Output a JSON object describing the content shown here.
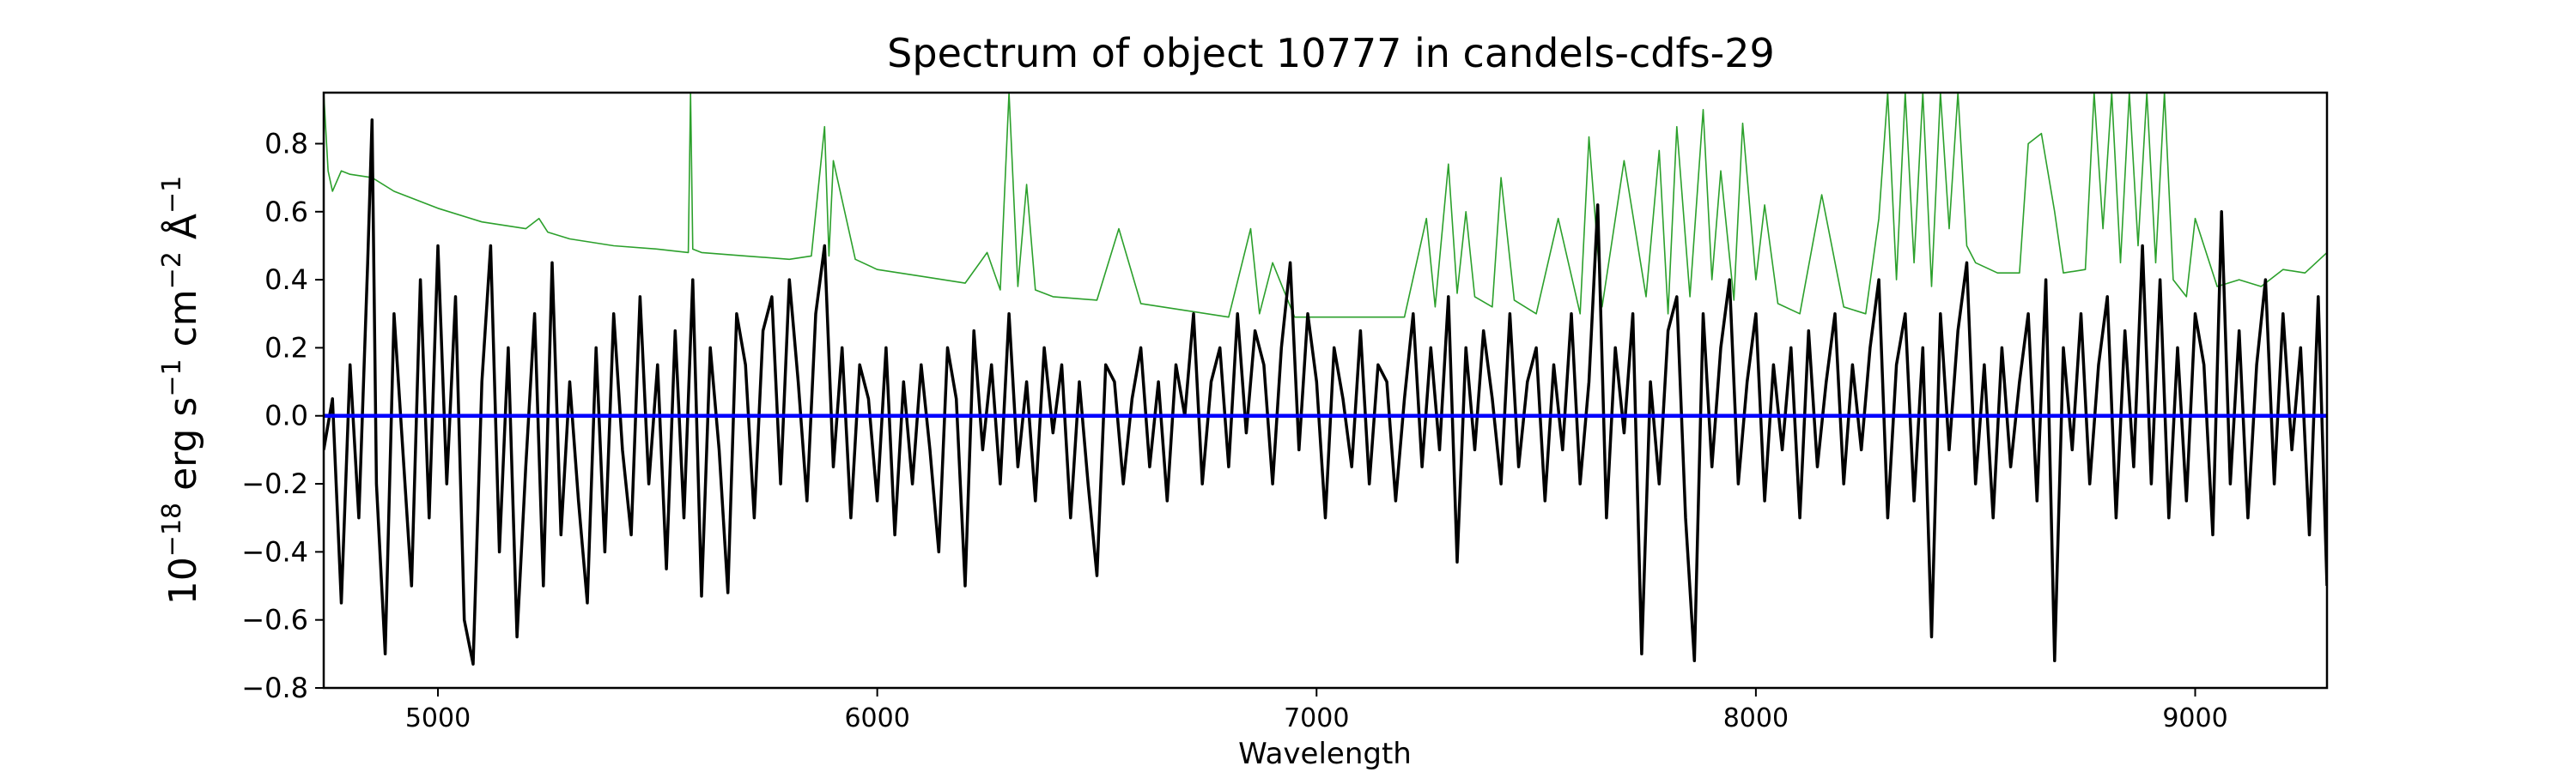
{
  "chart_data": {
    "type": "line",
    "title": "Spectrum of object 10777 in candels-cdfs-29",
    "xlabel": "Wavelength",
    "ylabel_parts": {
      "base": "10",
      "exp1": "−18",
      "erg": " erg s",
      "exp2": "−1",
      "cm": " cm",
      "exp3": "−2",
      "ang": " Å",
      "exp4": "−1"
    },
    "xlim": [
      4740,
      9300
    ],
    "ylim": [
      -0.8,
      0.95
    ],
    "x_ticks": [
      5000,
      6000,
      7000,
      8000,
      9000
    ],
    "x_tick_labels": [
      "5000",
      "6000",
      "7000",
      "8000",
      "9000"
    ],
    "y_ticks": [
      -0.8,
      -0.6,
      -0.4,
      -0.2,
      0.0,
      0.2,
      0.4,
      0.6,
      0.8
    ],
    "y_tick_labels": [
      "−0.8",
      "−0.6",
      "−0.4",
      "−0.2",
      "0.0",
      "0.2",
      "0.4",
      "0.6",
      "0.8"
    ],
    "grid": false,
    "legend": "none",
    "colors": {
      "flux": "#000000",
      "error": "#2ca02c",
      "zero": "#0000ff"
    },
    "series": [
      {
        "role": "zero-line",
        "x": [
          4740,
          9300
        ],
        "y": [
          0.0,
          0.0
        ]
      },
      {
        "role": "error-spectrum",
        "x": [
          4740,
          4750,
          4760,
          4780,
          4800,
          4850,
          4900,
          5000,
          5100,
          5200,
          5230,
          5250,
          5300,
          5400,
          5500,
          5570,
          5575,
          5580,
          5600,
          5700,
          5800,
          5850,
          5880,
          5890,
          5900,
          5950,
          6000,
          6100,
          6200,
          6250,
          6280,
          6300,
          6320,
          6340,
          6360,
          6400,
          6500,
          6550,
          6600,
          6700,
          6800,
          6850,
          6870,
          6900,
          6950,
          7000,
          7100,
          7200,
          7250,
          7270,
          7300,
          7320,
          7340,
          7360,
          7400,
          7420,
          7450,
          7500,
          7550,
          7600,
          7620,
          7650,
          7700,
          7750,
          7780,
          7800,
          7820,
          7850,
          7880,
          7900,
          7920,
          7950,
          7970,
          8000,
          8020,
          8050,
          8100,
          8150,
          8200,
          8250,
          8280,
          8300,
          8320,
          8340,
          8360,
          8380,
          8400,
          8420,
          8440,
          8460,
          8480,
          8500,
          8550,
          8600,
          8620,
          8650,
          8680,
          8700,
          8750,
          8770,
          8790,
          8810,
          8830,
          8850,
          8870,
          8890,
          8910,
          8930,
          8950,
          8980,
          9000,
          9050,
          9100,
          9150,
          9200,
          9250,
          9300
        ],
        "y": [
          0.95,
          0.72,
          0.66,
          0.72,
          0.71,
          0.7,
          0.66,
          0.61,
          0.57,
          0.55,
          0.58,
          0.54,
          0.52,
          0.5,
          0.49,
          0.48,
          0.95,
          0.49,
          0.48,
          0.47,
          0.46,
          0.47,
          0.85,
          0.47,
          0.75,
          0.46,
          0.43,
          0.41,
          0.39,
          0.48,
          0.37,
          0.95,
          0.38,
          0.68,
          0.37,
          0.35,
          0.34,
          0.55,
          0.33,
          0.31,
          0.29,
          0.55,
          0.3,
          0.45,
          0.29,
          0.29,
          0.29,
          0.29,
          0.58,
          0.32,
          0.74,
          0.36,
          0.6,
          0.35,
          0.32,
          0.7,
          0.34,
          0.3,
          0.58,
          0.3,
          0.82,
          0.32,
          0.75,
          0.35,
          0.78,
          0.3,
          0.85,
          0.35,
          0.9,
          0.4,
          0.72,
          0.34,
          0.86,
          0.4,
          0.62,
          0.33,
          0.3,
          0.65,
          0.32,
          0.3,
          0.58,
          0.95,
          0.4,
          0.95,
          0.45,
          0.95,
          0.38,
          0.95,
          0.55,
          0.95,
          0.5,
          0.45,
          0.42,
          0.42,
          0.8,
          0.83,
          0.6,
          0.42,
          0.43,
          0.95,
          0.55,
          0.95,
          0.45,
          0.95,
          0.5,
          0.95,
          0.45,
          0.95,
          0.4,
          0.35,
          0.58,
          0.38,
          0.4,
          0.38,
          0.43,
          0.42,
          0.48
        ]
      },
      {
        "role": "flux-spectrum",
        "x": [
          4740,
          4760,
          4780,
          4800,
          4820,
          4840,
          4850,
          4860,
          4880,
          4900,
          4920,
          4940,
          4960,
          4980,
          5000,
          5020,
          5040,
          5060,
          5080,
          5100,
          5120,
          5140,
          5160,
          5180,
          5200,
          5220,
          5240,
          5260,
          5280,
          5300,
          5320,
          5340,
          5360,
          5380,
          5400,
          5420,
          5440,
          5460,
          5480,
          5500,
          5520,
          5540,
          5560,
          5580,
          5600,
          5620,
          5640,
          5660,
          5680,
          5700,
          5720,
          5740,
          5760,
          5780,
          5800,
          5820,
          5840,
          5860,
          5880,
          5900,
          5920,
          5940,
          5960,
          5980,
          6000,
          6020,
          6040,
          6060,
          6080,
          6100,
          6120,
          6140,
          6160,
          6180,
          6200,
          6220,
          6240,
          6260,
          6280,
          6300,
          6320,
          6340,
          6360,
          6380,
          6400,
          6420,
          6440,
          6460,
          6480,
          6500,
          6520,
          6540,
          6560,
          6580,
          6600,
          6620,
          6640,
          6660,
          6680,
          6700,
          6720,
          6740,
          6760,
          6780,
          6800,
          6820,
          6840,
          6860,
          6880,
          6900,
          6920,
          6940,
          6960,
          6980,
          7000,
          7020,
          7040,
          7060,
          7080,
          7100,
          7120,
          7140,
          7160,
          7180,
          7200,
          7220,
          7240,
          7260,
          7280,
          7300,
          7320,
          7340,
          7360,
          7380,
          7400,
          7420,
          7440,
          7460,
          7480,
          7500,
          7520,
          7540,
          7560,
          7580,
          7600,
          7620,
          7640,
          7660,
          7680,
          7700,
          7720,
          7740,
          7760,
          7780,
          7800,
          7820,
          7840,
          7860,
          7880,
          7900,
          7920,
          7940,
          7960,
          7980,
          8000,
          8020,
          8040,
          8060,
          8080,
          8100,
          8120,
          8140,
          8160,
          8180,
          8200,
          8220,
          8240,
          8260,
          8280,
          8300,
          8320,
          8340,
          8360,
          8380,
          8400,
          8420,
          8440,
          8460,
          8480,
          8500,
          8520,
          8540,
          8560,
          8580,
          8600,
          8620,
          8640,
          8660,
          8680,
          8700,
          8720,
          8740,
          8760,
          8780,
          8800,
          8820,
          8840,
          8860,
          8880,
          8900,
          8920,
          8940,
          8960,
          8980,
          9000,
          9020,
          9040,
          9060,
          9080,
          9100,
          9120,
          9140,
          9160,
          9180,
          9200,
          9220,
          9240,
          9260,
          9280,
          9300
        ],
        "y": [
          -0.1,
          0.05,
          -0.55,
          0.15,
          -0.3,
          0.45,
          0.87,
          -0.2,
          -0.7,
          0.3,
          -0.1,
          -0.5,
          0.4,
          -0.3,
          0.5,
          -0.2,
          0.35,
          -0.6,
          -0.73,
          0.1,
          0.5,
          -0.4,
          0.2,
          -0.65,
          -0.15,
          0.3,
          -0.5,
          0.45,
          -0.35,
          0.1,
          -0.25,
          -0.55,
          0.2,
          -0.4,
          0.3,
          -0.1,
          -0.35,
          0.35,
          -0.2,
          0.15,
          -0.45,
          0.25,
          -0.3,
          0.4,
          -0.53,
          0.2,
          -0.1,
          -0.52,
          0.3,
          0.15,
          -0.3,
          0.25,
          0.35,
          -0.2,
          0.4,
          0.1,
          -0.25,
          0.3,
          0.5,
          -0.15,
          0.2,
          -0.3,
          0.15,
          0.05,
          -0.25,
          0.2,
          -0.35,
          0.1,
          -0.2,
          0.15,
          -0.1,
          -0.4,
          0.2,
          0.05,
          -0.5,
          0.25,
          -0.1,
          0.15,
          -0.2,
          0.3,
          -0.15,
          0.1,
          -0.25,
          0.2,
          -0.05,
          0.15,
          -0.3,
          0.1,
          -0.2,
          -0.47,
          0.15,
          0.1,
          -0.2,
          0.05,
          0.2,
          -0.15,
          0.1,
          -0.25,
          0.15,
          0.0,
          0.3,
          -0.2,
          0.1,
          0.2,
          -0.15,
          0.3,
          -0.05,
          0.25,
          0.15,
          -0.2,
          0.2,
          0.45,
          -0.1,
          0.3,
          0.1,
          -0.3,
          0.2,
          0.05,
          -0.15,
          0.25,
          -0.2,
          0.15,
          0.1,
          -0.25,
          0.05,
          0.3,
          -0.15,
          0.2,
          -0.1,
          0.35,
          -0.43,
          0.2,
          -0.1,
          0.25,
          0.05,
          -0.2,
          0.3,
          -0.15,
          0.1,
          0.2,
          -0.25,
          0.15,
          -0.1,
          0.3,
          -0.2,
          0.1,
          0.62,
          -0.3,
          0.2,
          -0.05,
          0.3,
          -0.7,
          0.1,
          -0.2,
          0.25,
          0.35,
          -0.3,
          -0.72,
          0.3,
          -0.15,
          0.2,
          0.4,
          -0.2,
          0.1,
          0.3,
          -0.25,
          0.15,
          -0.1,
          0.2,
          -0.3,
          0.25,
          -0.15,
          0.1,
          0.3,
          -0.2,
          0.15,
          -0.1,
          0.2,
          0.4,
          -0.3,
          0.15,
          0.3,
          -0.25,
          0.2,
          -0.65,
          0.3,
          -0.1,
          0.25,
          0.45,
          -0.2,
          0.15,
          -0.3,
          0.2,
          -0.15,
          0.1,
          0.3,
          -0.25,
          0.4,
          -0.72,
          0.2,
          -0.1,
          0.3,
          -0.2,
          0.15,
          0.35,
          -0.3,
          0.25,
          -0.15,
          0.5,
          -0.2,
          0.4,
          -0.3,
          0.2,
          -0.25,
          0.3,
          0.15,
          -0.35,
          0.6,
          -0.2,
          0.25,
          -0.3,
          0.15,
          0.4,
          -0.2,
          0.3,
          -0.1,
          0.2,
          -0.35,
          0.35,
          -0.5
        ]
      }
    ]
  }
}
